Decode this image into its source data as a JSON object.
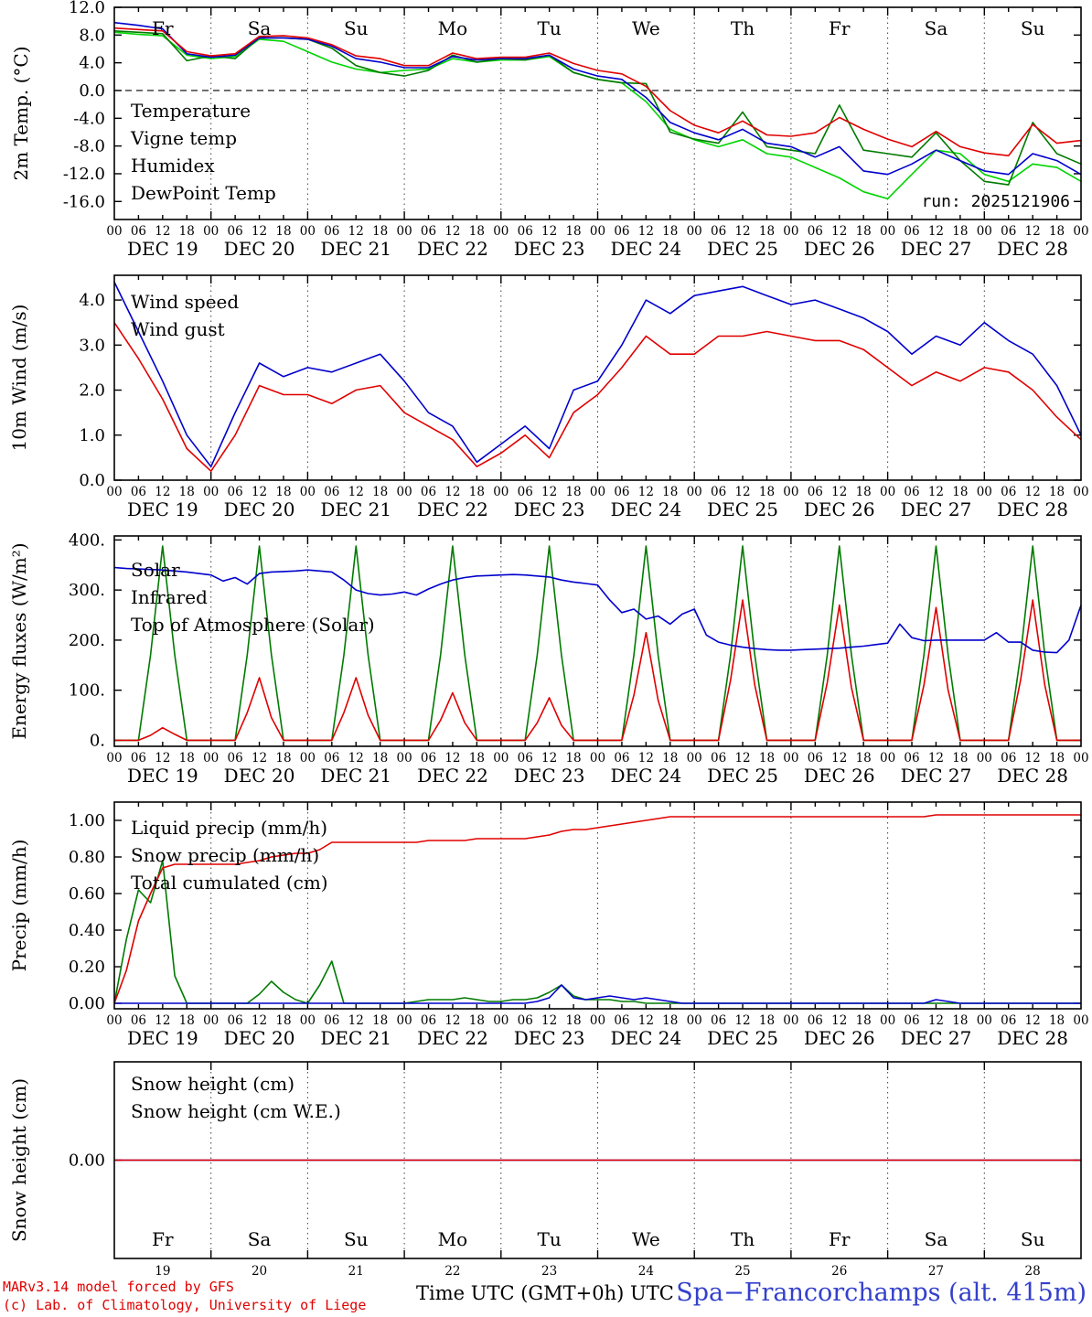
{
  "meta": {
    "run_label": "run: 2025121906",
    "xlabel": "Time UTC (GMT+0h) UTC",
    "station_title": "Spa−Francorchamps (alt. 415m)",
    "credit_line1": "MARv3.14 model forced by GFS",
    "credit_line2": "(c) Lab. of Climatology, University of Liege"
  },
  "colors": {
    "red": "#e00000",
    "dark_green": "#007a00",
    "blue": "#0000cc",
    "light_green": "#00d400",
    "axis": "#000000",
    "station_blue": "#3340cc",
    "weekend_red": "#e00000",
    "weekday_black": "#000000"
  },
  "x_axis": {
    "hour_ticks": [
      "00",
      "06",
      "12",
      "18"
    ],
    "days": [
      "DEC 19",
      "DEC 20",
      "DEC 21",
      "DEC 22",
      "DEC 23",
      "DEC 24",
      "DEC 25",
      "DEC 26",
      "DEC 27",
      "DEC 28"
    ],
    "day_numbers": [
      "19",
      "20",
      "21",
      "22",
      "23",
      "24",
      "25",
      "26",
      "27",
      "28"
    ],
    "weekdays": [
      {
        "label": "Fr",
        "weekend": false
      },
      {
        "label": "Sa",
        "weekend": true
      },
      {
        "label": "Su",
        "weekend": true
      },
      {
        "label": "Mo",
        "weekend": false
      },
      {
        "label": "Tu",
        "weekend": false
      },
      {
        "label": "We",
        "weekend": false
      },
      {
        "label": "Th",
        "weekend": false
      },
      {
        "label": "Fr",
        "weekend": false
      },
      {
        "label": "Sa",
        "weekend": true
      },
      {
        "label": "Su",
        "weekend": true
      }
    ],
    "x_range_hours": [
      0,
      240
    ],
    "x_description": "Dec 19 00 UTC to Dec 29 00 UTC"
  },
  "chart_data": [
    {
      "id": "temp2m",
      "type": "line",
      "ylabel": "2m Temp. (°C)",
      "ylim": [
        -18.6,
        12.0
      ],
      "yticks": [
        12.0,
        8.0,
        4.0,
        0.0,
        -4.0,
        -8.0,
        -12.0,
        -16.0
      ],
      "ytick_labels": [
        "12.0",
        "8.0",
        "4.0",
        "0.0",
        "-4.0",
        "-8.0",
        "-12.0",
        "-16.0"
      ],
      "x_step_hours": 6,
      "zero_dashed": 0.0,
      "annotation": "run: 2025121906",
      "series": [
        {
          "name": "DewPoint Temp",
          "color_key": "light_green",
          "values": [
            8.4,
            8.1,
            7.9,
            5.1,
            4.6,
            4.9,
            7.4,
            7.1,
            5.6,
            4.1,
            3.1,
            2.6,
            2.9,
            3.1,
            4.6,
            4.1,
            4.4,
            4.4,
            4.9,
            2.6,
            1.6,
            1.1,
            -1.6,
            -5.6,
            -7.1,
            -8.1,
            -7.1,
            -9.1,
            -9.6,
            -11.1,
            -12.6,
            -14.6,
            -15.6,
            -12.1,
            -8.6,
            -9.1,
            -12.1,
            -13.1,
            -10.6,
            -11.1,
            -13.1
          ]
        },
        {
          "name": "Vigne temp",
          "color_key": "dark_green",
          "values": [
            8.6,
            8.4,
            8.2,
            4.3,
            5.0,
            4.6,
            7.6,
            7.6,
            7.4,
            6.1,
            3.6,
            2.6,
            2.1,
            2.9,
            5.1,
            4.1,
            4.6,
            4.4,
            5.1,
            2.6,
            1.6,
            1.1,
            1.0,
            -6.0,
            -7.0,
            -7.6,
            -3.1,
            -8.1,
            -8.6,
            -9.1,
            -2.1,
            -8.6,
            -9.1,
            -9.6,
            -6.1,
            -10.1,
            -13.1,
            -13.6,
            -4.6,
            -9.1,
            -10.6
          ]
        },
        {
          "name": "Humidex",
          "color_key": "blue",
          "values": [
            9.8,
            9.4,
            8.9,
            5.3,
            4.8,
            5.1,
            7.6,
            7.6,
            7.4,
            6.4,
            4.6,
            4.1,
            3.3,
            3.3,
            4.9,
            4.4,
            4.6,
            4.6,
            5.1,
            3.1,
            2.1,
            1.6,
            -1.0,
            -4.6,
            -6.1,
            -7.1,
            -5.6,
            -7.6,
            -8.1,
            -9.6,
            -8.1,
            -11.6,
            -12.1,
            -10.6,
            -8.6,
            -10.1,
            -11.6,
            -12.1,
            -9.1,
            -10.1,
            -12.1
          ]
        },
        {
          "name": "Temperature",
          "color_key": "red",
          "values": [
            9.0,
            8.8,
            8.6,
            5.6,
            5.0,
            5.3,
            7.8,
            7.9,
            7.6,
            6.6,
            5.0,
            4.6,
            3.6,
            3.6,
            5.4,
            4.6,
            4.8,
            4.8,
            5.4,
            3.9,
            2.9,
            2.4,
            0.6,
            -2.9,
            -5.0,
            -6.1,
            -4.4,
            -6.4,
            -6.6,
            -6.1,
            -3.9,
            -5.6,
            -7.0,
            -8.1,
            -5.9,
            -8.1,
            -9.0,
            -9.4,
            -4.9,
            -7.6,
            -7.2
          ]
        }
      ],
      "legend_order": [
        "Temperature",
        "Vigne temp",
        "Humidex",
        "DewPoint Temp"
      ]
    },
    {
      "id": "wind10m",
      "type": "line",
      "ylabel": "10m Wind (m/s)",
      "ylim": [
        0.0,
        4.55
      ],
      "yticks": [
        4.0,
        3.0,
        2.0,
        1.0,
        0.0
      ],
      "ytick_labels": [
        "4.0",
        "3.0",
        "2.0",
        "1.0",
        "0.0"
      ],
      "x_step_hours": 6,
      "series": [
        {
          "name": "Wind gust",
          "color_key": "blue",
          "values": [
            4.4,
            3.3,
            2.2,
            1.0,
            0.3,
            1.5,
            2.6,
            2.3,
            2.5,
            2.4,
            2.6,
            2.8,
            2.2,
            1.5,
            1.2,
            0.4,
            0.8,
            1.2,
            0.7,
            2.0,
            2.2,
            3.0,
            4.0,
            3.7,
            4.1,
            4.2,
            4.3,
            4.1,
            3.9,
            4.0,
            3.8,
            3.6,
            3.3,
            2.8,
            3.2,
            3.0,
            3.5,
            3.1,
            2.8,
            2.1,
            1.0
          ]
        },
        {
          "name": "Wind speed",
          "color_key": "red",
          "values": [
            3.5,
            2.7,
            1.8,
            0.7,
            0.2,
            1.0,
            2.1,
            1.9,
            1.9,
            1.7,
            2.0,
            2.1,
            1.5,
            1.2,
            0.9,
            0.3,
            0.6,
            1.0,
            0.5,
            1.5,
            1.9,
            2.5,
            3.2,
            2.8,
            2.8,
            3.2,
            3.2,
            3.3,
            3.2,
            3.1,
            3.1,
            2.9,
            2.5,
            2.1,
            2.4,
            2.2,
            2.5,
            2.4,
            2.0,
            1.4,
            0.9
          ]
        }
      ],
      "legend_order": [
        "Wind speed",
        "Wind gust"
      ]
    },
    {
      "id": "energy",
      "type": "line",
      "ylabel": "Energy fluxes (W/m²)",
      "ylim": [
        -12,
        408
      ],
      "yticks": [
        400,
        300,
        200,
        100,
        0
      ],
      "ytick_labels": [
        "400.",
        "300.",
        "200.",
        "100.",
        "0."
      ],
      "x_step_hours": 3,
      "series": [
        {
          "name": "Top of Atmosphere (Solar)",
          "color_key": "dark_green",
          "values": [
            0,
            0,
            0,
            170,
            388,
            170,
            0,
            0,
            0,
            0,
            0,
            170,
            388,
            170,
            0,
            0,
            0,
            0,
            0,
            170,
            388,
            170,
            0,
            0,
            0,
            0,
            0,
            170,
            388,
            170,
            0,
            0,
            0,
            0,
            0,
            170,
            388,
            170,
            0,
            0,
            0,
            0,
            0,
            170,
            388,
            170,
            0,
            0,
            0,
            0,
            0,
            170,
            388,
            170,
            0,
            0,
            0,
            0,
            0,
            170,
            388,
            170,
            0,
            0,
            0,
            0,
            0,
            170,
            388,
            170,
            0,
            0,
            0,
            0,
            0,
            170,
            388,
            170,
            0,
            0,
            0
          ]
        },
        {
          "name": "Solar",
          "color_key": "red",
          "values": [
            0,
            0,
            0,
            10,
            25,
            12,
            0,
            0,
            0,
            0,
            0,
            55,
            125,
            45,
            0,
            0,
            0,
            0,
            0,
            55,
            125,
            50,
            0,
            0,
            0,
            0,
            0,
            40,
            95,
            35,
            0,
            0,
            0,
            0,
            0,
            35,
            85,
            30,
            0,
            0,
            0,
            0,
            0,
            90,
            215,
            80,
            0,
            0,
            0,
            0,
            0,
            120,
            280,
            110,
            0,
            0,
            0,
            0,
            0,
            115,
            270,
            105,
            0,
            0,
            0,
            0,
            0,
            110,
            265,
            100,
            0,
            0,
            0,
            0,
            0,
            120,
            280,
            110,
            0,
            0,
            0
          ]
        },
        {
          "name": "Infrared",
          "color_key": "blue",
          "values": [
            345,
            343,
            342,
            341,
            340,
            338,
            336,
            333,
            330,
            318,
            325,
            312,
            333,
            336,
            337,
            338,
            340,
            338,
            336,
            320,
            300,
            293,
            290,
            292,
            296,
            290,
            302,
            312,
            320,
            325,
            328,
            329,
            330,
            331,
            330,
            328,
            326,
            320,
            316,
            313,
            310,
            280,
            255,
            262,
            242,
            248,
            232,
            252,
            262,
            210,
            196,
            190,
            186,
            183,
            181,
            180,
            180,
            181,
            182,
            183,
            184,
            186,
            188,
            191,
            194,
            232,
            205,
            199,
            200,
            200,
            200,
            200,
            200,
            215,
            196,
            196,
            180,
            176,
            175,
            200,
            270
          ]
        }
      ],
      "legend_order": [
        "Solar",
        "Infrared",
        "Top of Atmosphere (Solar)"
      ]
    },
    {
      "id": "precip",
      "type": "line",
      "ylabel": "Precip (mm/h)",
      "ylim": [
        -0.03,
        1.1
      ],
      "yticks": [
        1.0,
        0.8,
        0.6,
        0.4,
        0.2,
        0.0
      ],
      "ytick_labels": [
        "1.00",
        "0.80",
        "0.60",
        "0.40",
        "0.20",
        "0.00"
      ],
      "x_step_hours": 3,
      "series": [
        {
          "name": "Liquid precip (mm/h)",
          "color_key": "dark_green",
          "values": [
            0,
            0.35,
            0.62,
            0.55,
            0.78,
            0.15,
            0,
            0,
            0,
            0,
            0,
            0,
            0.05,
            0.12,
            0.06,
            0.02,
            0,
            0.1,
            0.23,
            0,
            0,
            0,
            0,
            0,
            0,
            0.01,
            0.02,
            0.02,
            0.02,
            0.03,
            0.02,
            0.01,
            0.01,
            0.02,
            0.02,
            0.03,
            0.06,
            0.1,
            0.04,
            0.02,
            0.02,
            0.02,
            0.01,
            0.01,
            0,
            0,
            0,
            0,
            0,
            0,
            0,
            0,
            0,
            0,
            0,
            0,
            0,
            0,
            0,
            0,
            0,
            0,
            0,
            0,
            0,
            0,
            0,
            0,
            0,
            0,
            0,
            0,
            0,
            0,
            0,
            0,
            0,
            0,
            0,
            0,
            0
          ]
        },
        {
          "name": "Snow precip (mm/h)",
          "color_key": "blue",
          "values": [
            0,
            0,
            0,
            0,
            0,
            0,
            0,
            0,
            0,
            0,
            0,
            0,
            0,
            0,
            0,
            0,
            0,
            0,
            0,
            0,
            0,
            0,
            0,
            0,
            0,
            0,
            0,
            0,
            0,
            0,
            0,
            0,
            0,
            0,
            0,
            0.01,
            0.03,
            0.1,
            0.03,
            0.02,
            0.03,
            0.04,
            0.03,
            0.02,
            0.03,
            0.02,
            0.01,
            0,
            0,
            0,
            0,
            0,
            0,
            0,
            0,
            0,
            0,
            0,
            0,
            0,
            0,
            0,
            0,
            0,
            0,
            0,
            0,
            0,
            0.02,
            0.01,
            0,
            0,
            0,
            0,
            0,
            0,
            0,
            0,
            0,
            0,
            0
          ]
        },
        {
          "name": "Total cumulated (cm)",
          "color_key": "red",
          "values": [
            0,
            0.18,
            0.45,
            0.6,
            0.74,
            0.76,
            0.76,
            0.76,
            0.76,
            0.76,
            0.76,
            0.77,
            0.78,
            0.8,
            0.81,
            0.82,
            0.82,
            0.84,
            0.88,
            0.88,
            0.88,
            0.88,
            0.88,
            0.88,
            0.88,
            0.88,
            0.89,
            0.89,
            0.89,
            0.89,
            0.9,
            0.9,
            0.9,
            0.9,
            0.9,
            0.91,
            0.92,
            0.94,
            0.95,
            0.95,
            0.96,
            0.97,
            0.98,
            0.99,
            1.0,
            1.01,
            1.02,
            1.02,
            1.02,
            1.02,
            1.02,
            1.02,
            1.02,
            1.02,
            1.02,
            1.02,
            1.02,
            1.02,
            1.02,
            1.02,
            1.02,
            1.02,
            1.02,
            1.02,
            1.02,
            1.02,
            1.02,
            1.02,
            1.03,
            1.03,
            1.03,
            1.03,
            1.03,
            1.03,
            1.03,
            1.03,
            1.03,
            1.03,
            1.03,
            1.03,
            1.03
          ]
        }
      ],
      "legend_order": [
        "Liquid precip (mm/h)",
        "Snow precip (mm/h)",
        "Total cumulated (cm)"
      ]
    },
    {
      "id": "snow",
      "type": "line",
      "ylabel": "Snow height (cm)",
      "ylim": [
        -0.5,
        0.5
      ],
      "yticks": [
        0.0
      ],
      "ytick_labels": [
        "0.00"
      ],
      "x_step_hours": 120,
      "bottom_axis_mode": "day_numbers",
      "series": [
        {
          "name": "Snow height (cm W.E.)",
          "color_key": "blue",
          "values": [
            0,
            0,
            0
          ]
        },
        {
          "name": "Snow height (cm)",
          "color_key": "red",
          "values": [
            0,
            0,
            0
          ]
        }
      ],
      "legend_order": [
        "Snow height (cm)",
        "Snow height (cm W.E.)"
      ]
    }
  ]
}
